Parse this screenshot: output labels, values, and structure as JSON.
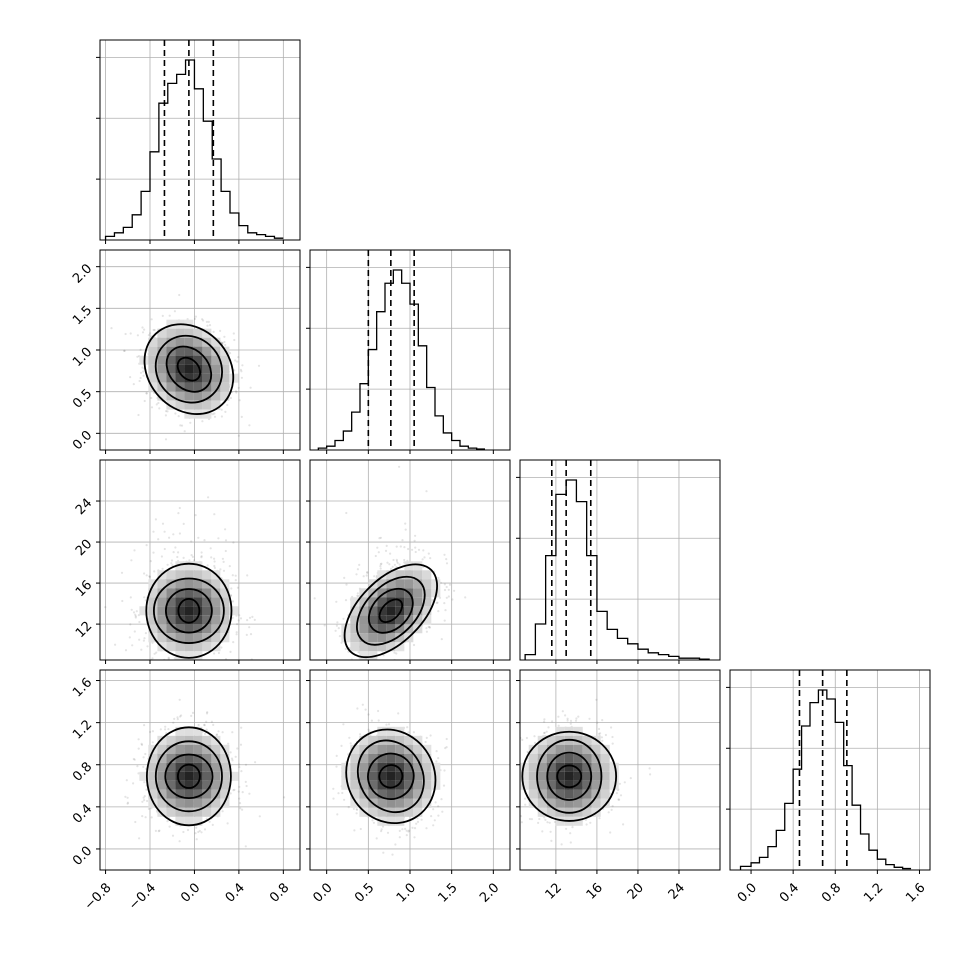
{
  "chart_data": {
    "type": "corner",
    "variables": [
      {
        "range": [
          -0.85,
          0.95
        ],
        "ticks": [
          -0.8,
          -0.4,
          0.0,
          0.4,
          0.8
        ],
        "tick_labels": [
          "−0.8",
          "−0.4",
          "0.0",
          "0.4",
          "0.8"
        ],
        "mean": -0.05,
        "sd": 0.2,
        "quantiles": [
          -0.27,
          -0.05,
          0.17
        ]
      },
      {
        "range": [
          -0.2,
          2.2
        ],
        "ticks": [
          0.0,
          0.5,
          1.0,
          1.5,
          2.0
        ],
        "tick_labels": [
          "0.0",
          "0.5",
          "1.0",
          "1.5",
          "2.0"
        ],
        "mean": 0.77,
        "sd": 0.27,
        "quantiles": [
          0.5,
          0.77,
          1.05
        ]
      },
      {
        "range": [
          8.5,
          28.0
        ],
        "ticks": [
          12,
          16,
          20,
          24
        ],
        "tick_labels": [
          "12",
          "16",
          "20",
          "24"
        ],
        "mean": 13.3,
        "sd": 2.2,
        "quantiles": [
          11.6,
          13.0,
          15.4
        ]
      },
      {
        "range": [
          -0.2,
          1.7
        ],
        "ticks": [
          0.0,
          0.4,
          0.8,
          1.2,
          1.6
        ],
        "tick_labels": [
          "0.0",
          "0.4",
          "0.8",
          "1.2",
          "1.6"
        ],
        "mean": 0.69,
        "sd": 0.22,
        "quantiles": [
          0.46,
          0.68,
          0.91
        ]
      }
    ],
    "histograms": [
      {
        "bins": [
          -0.8,
          -0.72,
          -0.64,
          -0.56,
          -0.48,
          -0.4,
          -0.32,
          -0.24,
          -0.16,
          -0.08,
          0.0,
          0.08,
          0.16,
          0.24,
          0.32,
          0.4,
          0.48,
          0.56,
          0.64,
          0.72,
          0.8
        ],
        "counts": [
          0.02,
          0.04,
          0.07,
          0.14,
          0.27,
          0.49,
          0.76,
          0.87,
          0.92,
          1.0,
          0.84,
          0.66,
          0.45,
          0.27,
          0.15,
          0.08,
          0.04,
          0.03,
          0.02,
          0.01
        ]
      },
      {
        "bins": [
          -0.1,
          0.0,
          0.1,
          0.2,
          0.3,
          0.4,
          0.5,
          0.6,
          0.7,
          0.8,
          0.9,
          1.0,
          1.1,
          1.2,
          1.3,
          1.4,
          1.5,
          1.6,
          1.7,
          1.8,
          1.9
        ],
        "counts": [
          0.01,
          0.02,
          0.05,
          0.1,
          0.2,
          0.35,
          0.53,
          0.73,
          0.88,
          0.95,
          0.88,
          0.77,
          0.55,
          0.33,
          0.18,
          0.09,
          0.05,
          0.02,
          0.01,
          0.005
        ]
      },
      {
        "bins": [
          9,
          10,
          11,
          12,
          13,
          14,
          15,
          16,
          17,
          18,
          19,
          20,
          21,
          22,
          23,
          24,
          25,
          26,
          27
        ],
        "counts": [
          0.03,
          0.2,
          0.58,
          0.92,
          1.0,
          0.88,
          0.58,
          0.27,
          0.17,
          0.12,
          0.09,
          0.06,
          0.04,
          0.03,
          0.02,
          0.01,
          0.01,
          0.005
        ]
      },
      {
        "bins": [
          -0.1,
          0.0,
          0.08,
          0.16,
          0.24,
          0.32,
          0.4,
          0.48,
          0.56,
          0.64,
          0.72,
          0.8,
          0.88,
          0.96,
          1.04,
          1.12,
          1.2,
          1.28,
          1.36,
          1.44,
          1.52
        ],
        "counts": [
          0.02,
          0.04,
          0.07,
          0.13,
          0.22,
          0.37,
          0.56,
          0.8,
          0.93,
          1.0,
          0.95,
          0.82,
          0.58,
          0.36,
          0.2,
          0.11,
          0.06,
          0.03,
          0.015,
          0.008
        ]
      }
    ],
    "correlations": [
      [
        1,
        -0.2,
        0.0,
        0.0
      ],
      [
        -0.2,
        1,
        0.45,
        -0.05
      ],
      [
        0.0,
        0.45,
        1,
        0.0
      ],
      [
        0.0,
        -0.05,
        0.0,
        1
      ]
    ],
    "contour_levels_sigma": [
      0.5,
      1.0,
      1.5,
      2.0
    ],
    "grid": true,
    "quantiles_marked": [
      0.16,
      0.5,
      0.84
    ]
  }
}
